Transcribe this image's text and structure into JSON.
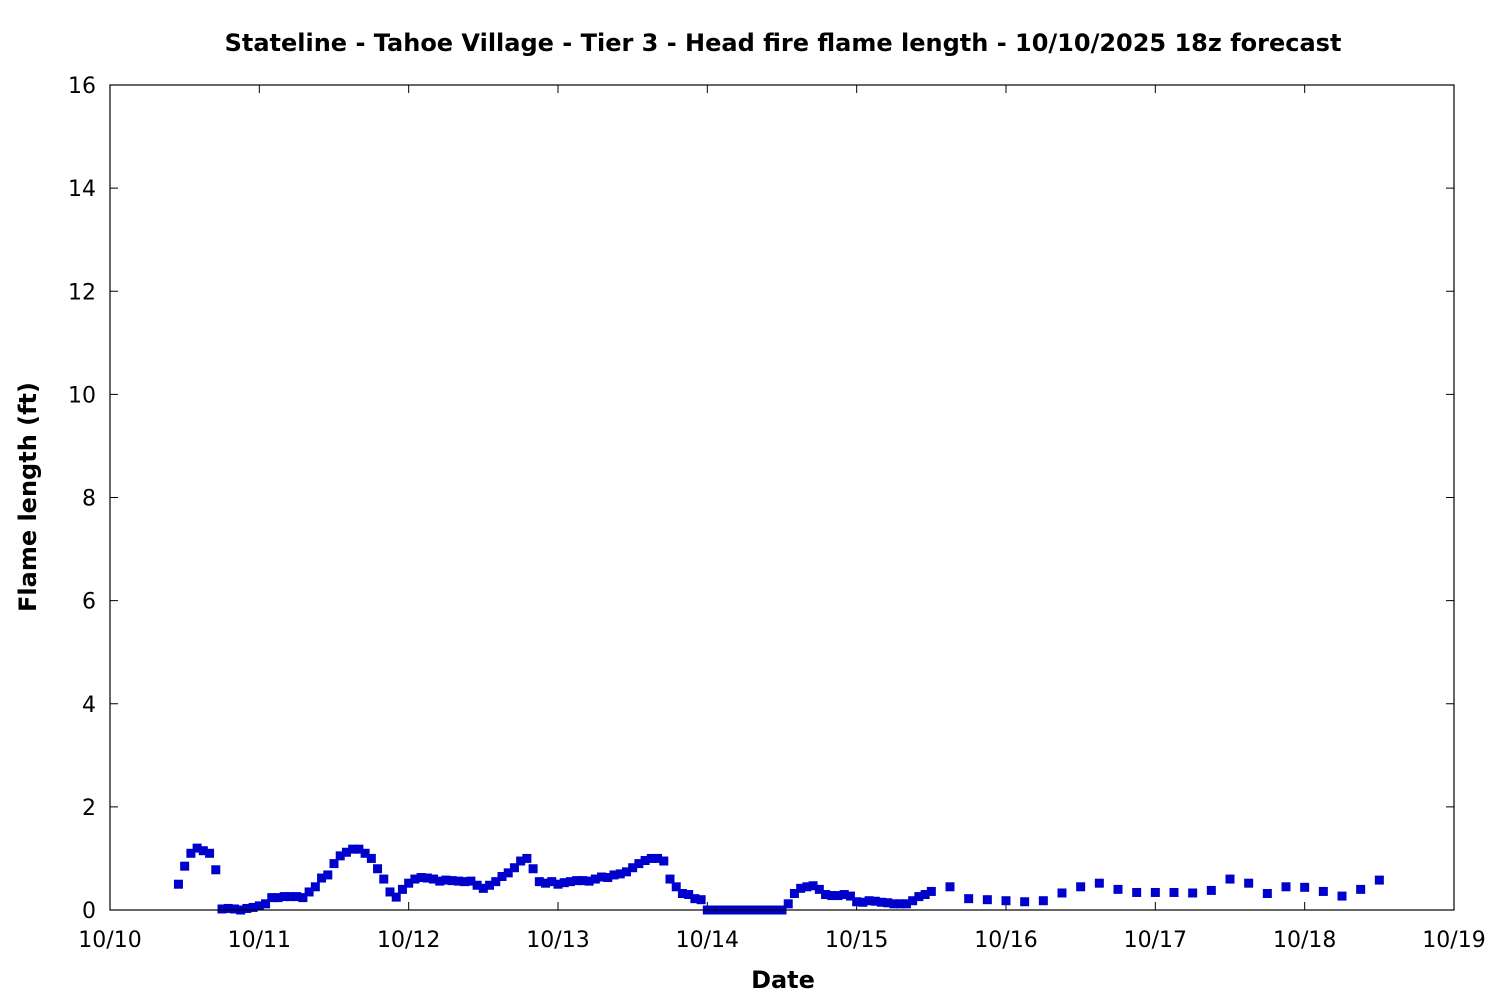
{
  "chart_data": {
    "type": "scatter",
    "title": "Stateline - Tahoe Village - Tier 3 - Head fire flame length - 10/10/2025 18z forecast",
    "xlabel": "Date",
    "ylabel": "Flame length (ft)",
    "xlim": [
      "10/10",
      "10/19"
    ],
    "ylim": [
      0,
      16
    ],
    "x_ticks": [
      "10/10",
      "10/11",
      "10/12",
      "10/13",
      "10/14",
      "10/15",
      "10/16",
      "10/17",
      "10/18",
      "10/19"
    ],
    "y_ticks": [
      "0",
      "2",
      "4",
      "6",
      "8",
      "10",
      "12",
      "14",
      "16"
    ],
    "grid": false,
    "marker": "square",
    "color": "#0000cc",
    "series": [
      {
        "points": [
          [
            "10/10 11:00",
            0.5
          ],
          [
            "10/10 12:00",
            0.85
          ],
          [
            "10/10 13:00",
            1.1
          ],
          [
            "10/10 14:00",
            1.2
          ],
          [
            "10/10 15:00",
            1.15
          ],
          [
            "10/10 16:00",
            1.1
          ],
          [
            "10/10 17:00",
            0.78
          ],
          [
            "10/10 18:00",
            0.02
          ],
          [
            "10/10 19:00",
            0.03
          ],
          [
            "10/10 20:00",
            0.02
          ],
          [
            "10/10 21:00",
            0.0
          ],
          [
            "10/10 22:00",
            0.03
          ],
          [
            "10/10 23:00",
            0.05
          ],
          [
            "10/11 00:00",
            0.08
          ],
          [
            "10/11 01:00",
            0.12
          ],
          [
            "10/11 02:00",
            0.24
          ],
          [
            "10/11 03:00",
            0.24
          ],
          [
            "10/11 04:00",
            0.26
          ],
          [
            "10/11 05:00",
            0.26
          ],
          [
            "10/11 06:00",
            0.26
          ],
          [
            "10/11 07:00",
            0.24
          ],
          [
            "10/11 08:00",
            0.35
          ],
          [
            "10/11 09:00",
            0.45
          ],
          [
            "10/11 10:00",
            0.62
          ],
          [
            "10/11 11:00",
            0.68
          ],
          [
            "10/11 12:00",
            0.9
          ],
          [
            "10/11 13:00",
            1.05
          ],
          [
            "10/11 14:00",
            1.12
          ],
          [
            "10/11 15:00",
            1.18
          ],
          [
            "10/11 16:00",
            1.18
          ],
          [
            "10/11 17:00",
            1.1
          ],
          [
            "10/11 18:00",
            1.0
          ],
          [
            "10/11 19:00",
            0.8
          ],
          [
            "10/11 20:00",
            0.6
          ],
          [
            "10/11 21:00",
            0.35
          ],
          [
            "10/11 22:00",
            0.25
          ],
          [
            "10/11 23:00",
            0.4
          ],
          [
            "10/12 00:00",
            0.52
          ],
          [
            "10/12 01:00",
            0.6
          ],
          [
            "10/12 02:00",
            0.63
          ],
          [
            "10/12 03:00",
            0.62
          ],
          [
            "10/12 04:00",
            0.6
          ],
          [
            "10/12 05:00",
            0.56
          ],
          [
            "10/12 06:00",
            0.58
          ],
          [
            "10/12 07:00",
            0.57
          ],
          [
            "10/12 08:00",
            0.56
          ],
          [
            "10/12 09:00",
            0.55
          ],
          [
            "10/12 10:00",
            0.56
          ],
          [
            "10/12 11:00",
            0.48
          ],
          [
            "10/12 12:00",
            0.42
          ],
          [
            "10/12 13:00",
            0.48
          ],
          [
            "10/12 14:00",
            0.55
          ],
          [
            "10/12 15:00",
            0.65
          ],
          [
            "10/12 16:00",
            0.72
          ],
          [
            "10/12 17:00",
            0.82
          ],
          [
            "10/12 18:00",
            0.95
          ],
          [
            "10/12 19:00",
            1.0
          ],
          [
            "10/12 20:00",
            0.8
          ],
          [
            "10/12 21:00",
            0.55
          ],
          [
            "10/12 22:00",
            0.52
          ],
          [
            "10/12 23:00",
            0.55
          ],
          [
            "10/13 00:00",
            0.5
          ],
          [
            "10/13 01:00",
            0.53
          ],
          [
            "10/13 02:00",
            0.55
          ],
          [
            "10/13 03:00",
            0.57
          ],
          [
            "10/13 04:00",
            0.57
          ],
          [
            "10/13 05:00",
            0.56
          ],
          [
            "10/13 06:00",
            0.6
          ],
          [
            "10/13 07:00",
            0.64
          ],
          [
            "10/13 08:00",
            0.63
          ],
          [
            "10/13 09:00",
            0.68
          ],
          [
            "10/13 10:00",
            0.7
          ],
          [
            "10/13 11:00",
            0.74
          ],
          [
            "10/13 12:00",
            0.82
          ],
          [
            "10/13 13:00",
            0.9
          ],
          [
            "10/13 14:00",
            0.96
          ],
          [
            "10/13 15:00",
            1.0
          ],
          [
            "10/13 16:00",
            1.0
          ],
          [
            "10/13 17:00",
            0.95
          ],
          [
            "10/13 18:00",
            0.6
          ],
          [
            "10/13 19:00",
            0.45
          ],
          [
            "10/13 20:00",
            0.32
          ],
          [
            "10/13 21:00",
            0.3
          ],
          [
            "10/13 22:00",
            0.22
          ],
          [
            "10/13 23:00",
            0.2
          ],
          [
            "10/14 00:00",
            0.0
          ],
          [
            "10/14 01:00",
            0.0
          ],
          [
            "10/14 02:00",
            0.0
          ],
          [
            "10/14 03:00",
            0.0
          ],
          [
            "10/14 04:00",
            0.0
          ],
          [
            "10/14 05:00",
            0.0
          ],
          [
            "10/14 06:00",
            0.0
          ],
          [
            "10/14 07:00",
            0.0
          ],
          [
            "10/14 08:00",
            0.0
          ],
          [
            "10/14 09:00",
            0.0
          ],
          [
            "10/14 10:00",
            0.0
          ],
          [
            "10/14 11:00",
            0.0
          ],
          [
            "10/14 12:00",
            0.0
          ],
          [
            "10/14 13:00",
            0.12
          ],
          [
            "10/14 14:00",
            0.32
          ],
          [
            "10/14 15:00",
            0.42
          ],
          [
            "10/14 16:00",
            0.45
          ],
          [
            "10/14 17:00",
            0.47
          ],
          [
            "10/14 18:00",
            0.4
          ],
          [
            "10/14 19:00",
            0.3
          ],
          [
            "10/14 20:00",
            0.28
          ],
          [
            "10/14 21:00",
            0.28
          ],
          [
            "10/14 22:00",
            0.3
          ],
          [
            "10/14 23:00",
            0.27
          ],
          [
            "10/15 00:00",
            0.16
          ],
          [
            "10/15 01:00",
            0.15
          ],
          [
            "10/15 02:00",
            0.18
          ],
          [
            "10/15 03:00",
            0.17
          ],
          [
            "10/15 04:00",
            0.15
          ],
          [
            "10/15 05:00",
            0.14
          ],
          [
            "10/15 06:00",
            0.12
          ],
          [
            "10/15 07:00",
            0.12
          ],
          [
            "10/15 08:00",
            0.12
          ],
          [
            "10/15 09:00",
            0.18
          ],
          [
            "10/15 10:00",
            0.26
          ],
          [
            "10/15 11:00",
            0.3
          ],
          [
            "10/15 12:00",
            0.36
          ],
          [
            "10/15 15:00",
            0.45
          ],
          [
            "10/15 18:00",
            0.22
          ],
          [
            "10/15 21:00",
            0.2
          ],
          [
            "10/16 00:00",
            0.18
          ],
          [
            "10/16 03:00",
            0.16
          ],
          [
            "10/16 06:00",
            0.18
          ],
          [
            "10/16 09:00",
            0.33
          ],
          [
            "10/16 12:00",
            0.45
          ],
          [
            "10/16 15:00",
            0.52
          ],
          [
            "10/16 18:00",
            0.4
          ],
          [
            "10/16 21:00",
            0.34
          ],
          [
            "10/17 00:00",
            0.34
          ],
          [
            "10/17 03:00",
            0.34
          ],
          [
            "10/17 06:00",
            0.33
          ],
          [
            "10/17 09:00",
            0.38
          ],
          [
            "10/17 12:00",
            0.6
          ],
          [
            "10/17 15:00",
            0.52
          ],
          [
            "10/17 18:00",
            0.32
          ],
          [
            "10/17 21:00",
            0.45
          ],
          [
            "10/18 00:00",
            0.44
          ],
          [
            "10/18 03:00",
            0.36
          ],
          [
            "10/18 06:00",
            0.27
          ],
          [
            "10/18 09:00",
            0.4
          ],
          [
            "10/18 12:00",
            0.58
          ]
        ]
      }
    ]
  }
}
